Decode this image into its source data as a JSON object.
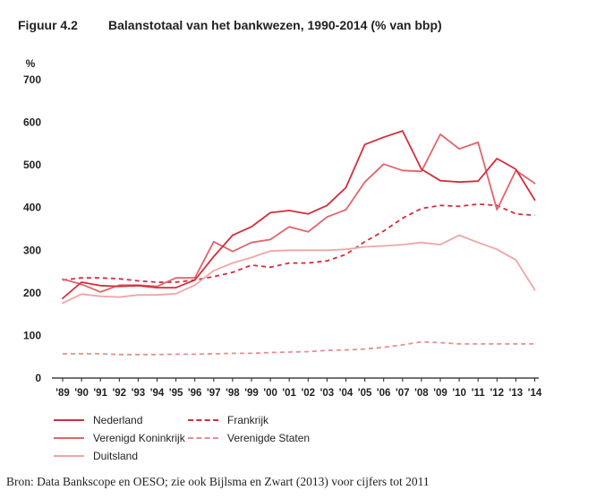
{
  "figure_label": "Figuur 4.2",
  "figure_title": "Balanstotaal van het bankwezen, 1990-2014 (% van bbp)",
  "source_note": "Bron: Data Bankscope en OESO; zie ook Bijlsma en Zwart (2013) voor cijfers tot 2011",
  "chart_data": {
    "type": "line",
    "title": "Balanstotaal van het bankwezen, 1990-2014 (% van bbp)",
    "ylabel": "%",
    "xlabel": "",
    "ylim": [
      0,
      700
    ],
    "yticks": [
      0,
      100,
      200,
      300,
      400,
      500,
      600,
      700
    ],
    "categories": [
      "'89",
      "'90",
      "'91",
      "'92",
      "'93",
      "'94",
      "'95",
      "'96",
      "'97",
      "'98",
      "'99",
      "'00",
      "'01",
      "'02",
      "'03",
      "'04",
      "'05",
      "'06",
      "'07",
      "'08",
      "'09",
      "'10",
      "'11",
      "'12",
      "'13",
      "'14"
    ],
    "grid": false,
    "legend_position": "bottom",
    "series": [
      {
        "name": "Nederland",
        "color": "#d42d3c",
        "style": "solid",
        "values": [
          187,
          225,
          217,
          215,
          217,
          212,
          212,
          230,
          285,
          335,
          355,
          388,
          393,
          385,
          405,
          447,
          548,
          565,
          580,
          490,
          463,
          460,
          462,
          515,
          490,
          418
        ]
      },
      {
        "name": "Verenigd Koninkrijk",
        "color": "#e2646a",
        "style": "solid",
        "values": [
          232,
          220,
          202,
          218,
          218,
          215,
          235,
          235,
          320,
          297,
          318,
          325,
          355,
          343,
          378,
          395,
          460,
          502,
          487,
          485,
          572,
          538,
          553,
          395,
          487,
          457
        ]
      },
      {
        "name": "Duitsland",
        "color": "#f0a5a5",
        "style": "solid",
        "values": [
          176,
          197,
          192,
          190,
          195,
          195,
          198,
          218,
          252,
          270,
          283,
          298,
          300,
          300,
          300,
          302,
          308,
          310,
          313,
          318,
          313,
          335,
          318,
          302,
          277,
          207
        ]
      },
      {
        "name": "Frankrijk",
        "color": "#d42d3c",
        "style": "dashed",
        "values": [
          230,
          235,
          235,
          233,
          228,
          225,
          225,
          230,
          238,
          248,
          265,
          260,
          270,
          270,
          275,
          290,
          320,
          345,
          375,
          398,
          405,
          403,
          408,
          405,
          385,
          382
        ]
      },
      {
        "name": "Verenigde Staten",
        "color": "#e68f91",
        "style": "dashed",
        "values": [
          57,
          57,
          57,
          55,
          55,
          55,
          56,
          56,
          57,
          58,
          58,
          60,
          61,
          62,
          65,
          66,
          68,
          72,
          78,
          85,
          83,
          80,
          80,
          80,
          80,
          80
        ]
      }
    ]
  }
}
